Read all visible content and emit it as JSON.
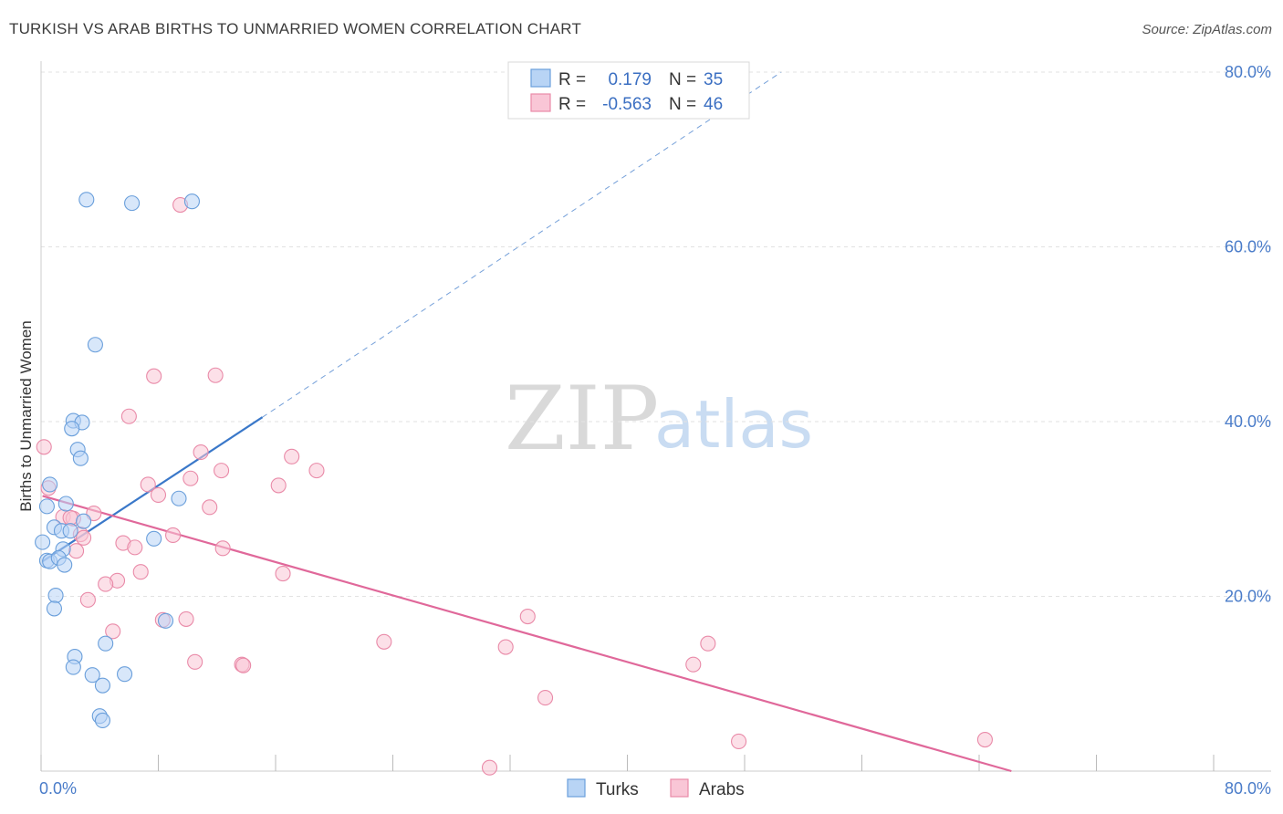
{
  "title": "TURKISH VS ARAB BIRTHS TO UNMARRIED WOMEN CORRELATION CHART",
  "source": "Source: ZipAtlas.com",
  "watermark": {
    "zip": "ZIP",
    "atlas": "atlas"
  },
  "legend_box": {
    "turks": {
      "r_label": "R =",
      "r_value": "0.179",
      "n_label": "N =",
      "n_value": "35"
    },
    "arabs": {
      "r_label": "R =",
      "r_value": "-0.563",
      "n_label": "N =",
      "n_value": "46"
    }
  },
  "bottom_legend": {
    "turks": "Turks",
    "arabs": "Arabs"
  },
  "colors": {
    "turks_fill": "#b8d4f5",
    "turks_stroke": "#6a9fdb",
    "turks_line": "#3a78c9",
    "arabs_fill": "#f9c6d6",
    "arabs_stroke": "#e98aa8",
    "arabs_line": "#e0689a",
    "grid": "#e2e2e2",
    "tick_text": "#4a7cc9"
  },
  "chart_data": {
    "type": "scatter",
    "title": "TURKISH VS ARAB BIRTHS TO UNMARRIED WOMEN CORRELATION CHART",
    "xlabel": "",
    "ylabel": "Births to Unmarried Women",
    "xlim": [
      0,
      80
    ],
    "ylim": [
      0,
      80
    ],
    "x_tick_labels": [
      "0.0%",
      "80.0%"
    ],
    "y_ticks": [
      20,
      40,
      60,
      80
    ],
    "y_tick_labels": [
      "20.0%",
      "40.0%",
      "60.0%",
      "80.0%"
    ],
    "grid": true,
    "series": [
      {
        "name": "Turks",
        "r": 0.179,
        "n": 35,
        "points": [
          [
            3.1,
            65.4
          ],
          [
            6.2,
            65.0
          ],
          [
            10.3,
            65.2
          ],
          [
            3.7,
            48.8
          ],
          [
            2.2,
            40.1
          ],
          [
            2.8,
            39.9
          ],
          [
            2.1,
            39.2
          ],
          [
            2.5,
            36.8
          ],
          [
            2.7,
            35.8
          ],
          [
            0.6,
            32.8
          ],
          [
            0.4,
            30.3
          ],
          [
            1.7,
            30.6
          ],
          [
            9.4,
            31.2
          ],
          [
            0.9,
            27.9
          ],
          [
            1.4,
            27.5
          ],
          [
            2.0,
            27.5
          ],
          [
            2.9,
            28.6
          ],
          [
            7.7,
            26.6
          ],
          [
            0.1,
            26.2
          ],
          [
            1.5,
            25.4
          ],
          [
            0.4,
            24.1
          ],
          [
            0.6,
            24.0
          ],
          [
            1.2,
            24.4
          ],
          [
            1.6,
            23.6
          ],
          [
            1.0,
            20.1
          ],
          [
            0.9,
            18.6
          ],
          [
            8.5,
            17.2
          ],
          [
            2.3,
            13.1
          ],
          [
            4.4,
            14.6
          ],
          [
            2.2,
            11.9
          ],
          [
            3.5,
            11.0
          ],
          [
            5.7,
            11.1
          ],
          [
            4.2,
            9.8
          ],
          [
            4.0,
            6.3
          ],
          [
            4.2,
            5.8
          ]
        ],
        "trend": {
          "x1": 0.1,
          "y1": 24.0,
          "x2": 15.1,
          "y2": 40.5,
          "dashed_to_x": 50.5,
          "dashed_to_y": 80.0
        }
      },
      {
        "name": "Arabs",
        "r": -0.563,
        "n": 46,
        "points": [
          [
            9.5,
            64.8
          ],
          [
            7.7,
            45.2
          ],
          [
            11.9,
            45.3
          ],
          [
            6.0,
            40.6
          ],
          [
            0.2,
            37.1
          ],
          [
            10.9,
            36.5
          ],
          [
            17.1,
            36.0
          ],
          [
            12.3,
            34.4
          ],
          [
            18.8,
            34.4
          ],
          [
            10.2,
            33.5
          ],
          [
            7.3,
            32.8
          ],
          [
            16.2,
            32.7
          ],
          [
            8.0,
            31.6
          ],
          [
            0.5,
            32.4
          ],
          [
            1.5,
            29.1
          ],
          [
            2.2,
            28.9
          ],
          [
            2.0,
            29.0
          ],
          [
            3.6,
            29.5
          ],
          [
            11.5,
            30.2
          ],
          [
            2.7,
            27.1
          ],
          [
            2.9,
            26.7
          ],
          [
            9.0,
            27.0
          ],
          [
            5.6,
            26.1
          ],
          [
            6.4,
            25.6
          ],
          [
            12.4,
            25.5
          ],
          [
            2.4,
            25.2
          ],
          [
            6.8,
            22.8
          ],
          [
            16.5,
            22.6
          ],
          [
            5.2,
            21.8
          ],
          [
            4.4,
            21.4
          ],
          [
            3.2,
            19.6
          ],
          [
            33.2,
            17.7
          ],
          [
            9.9,
            17.4
          ],
          [
            8.3,
            17.3
          ],
          [
            4.9,
            16.0
          ],
          [
            23.4,
            14.8
          ],
          [
            31.7,
            14.2
          ],
          [
            45.5,
            14.6
          ],
          [
            10.5,
            12.5
          ],
          [
            13.7,
            12.2
          ],
          [
            13.8,
            12.1
          ],
          [
            44.5,
            12.2
          ],
          [
            34.4,
            8.4
          ],
          [
            47.6,
            3.4
          ],
          [
            64.4,
            3.6
          ],
          [
            30.6,
            0.4
          ]
        ],
        "trend": {
          "x1": 0.1,
          "y1": 31.5,
          "x2": 66.2,
          "y2": 0.0
        }
      }
    ]
  }
}
